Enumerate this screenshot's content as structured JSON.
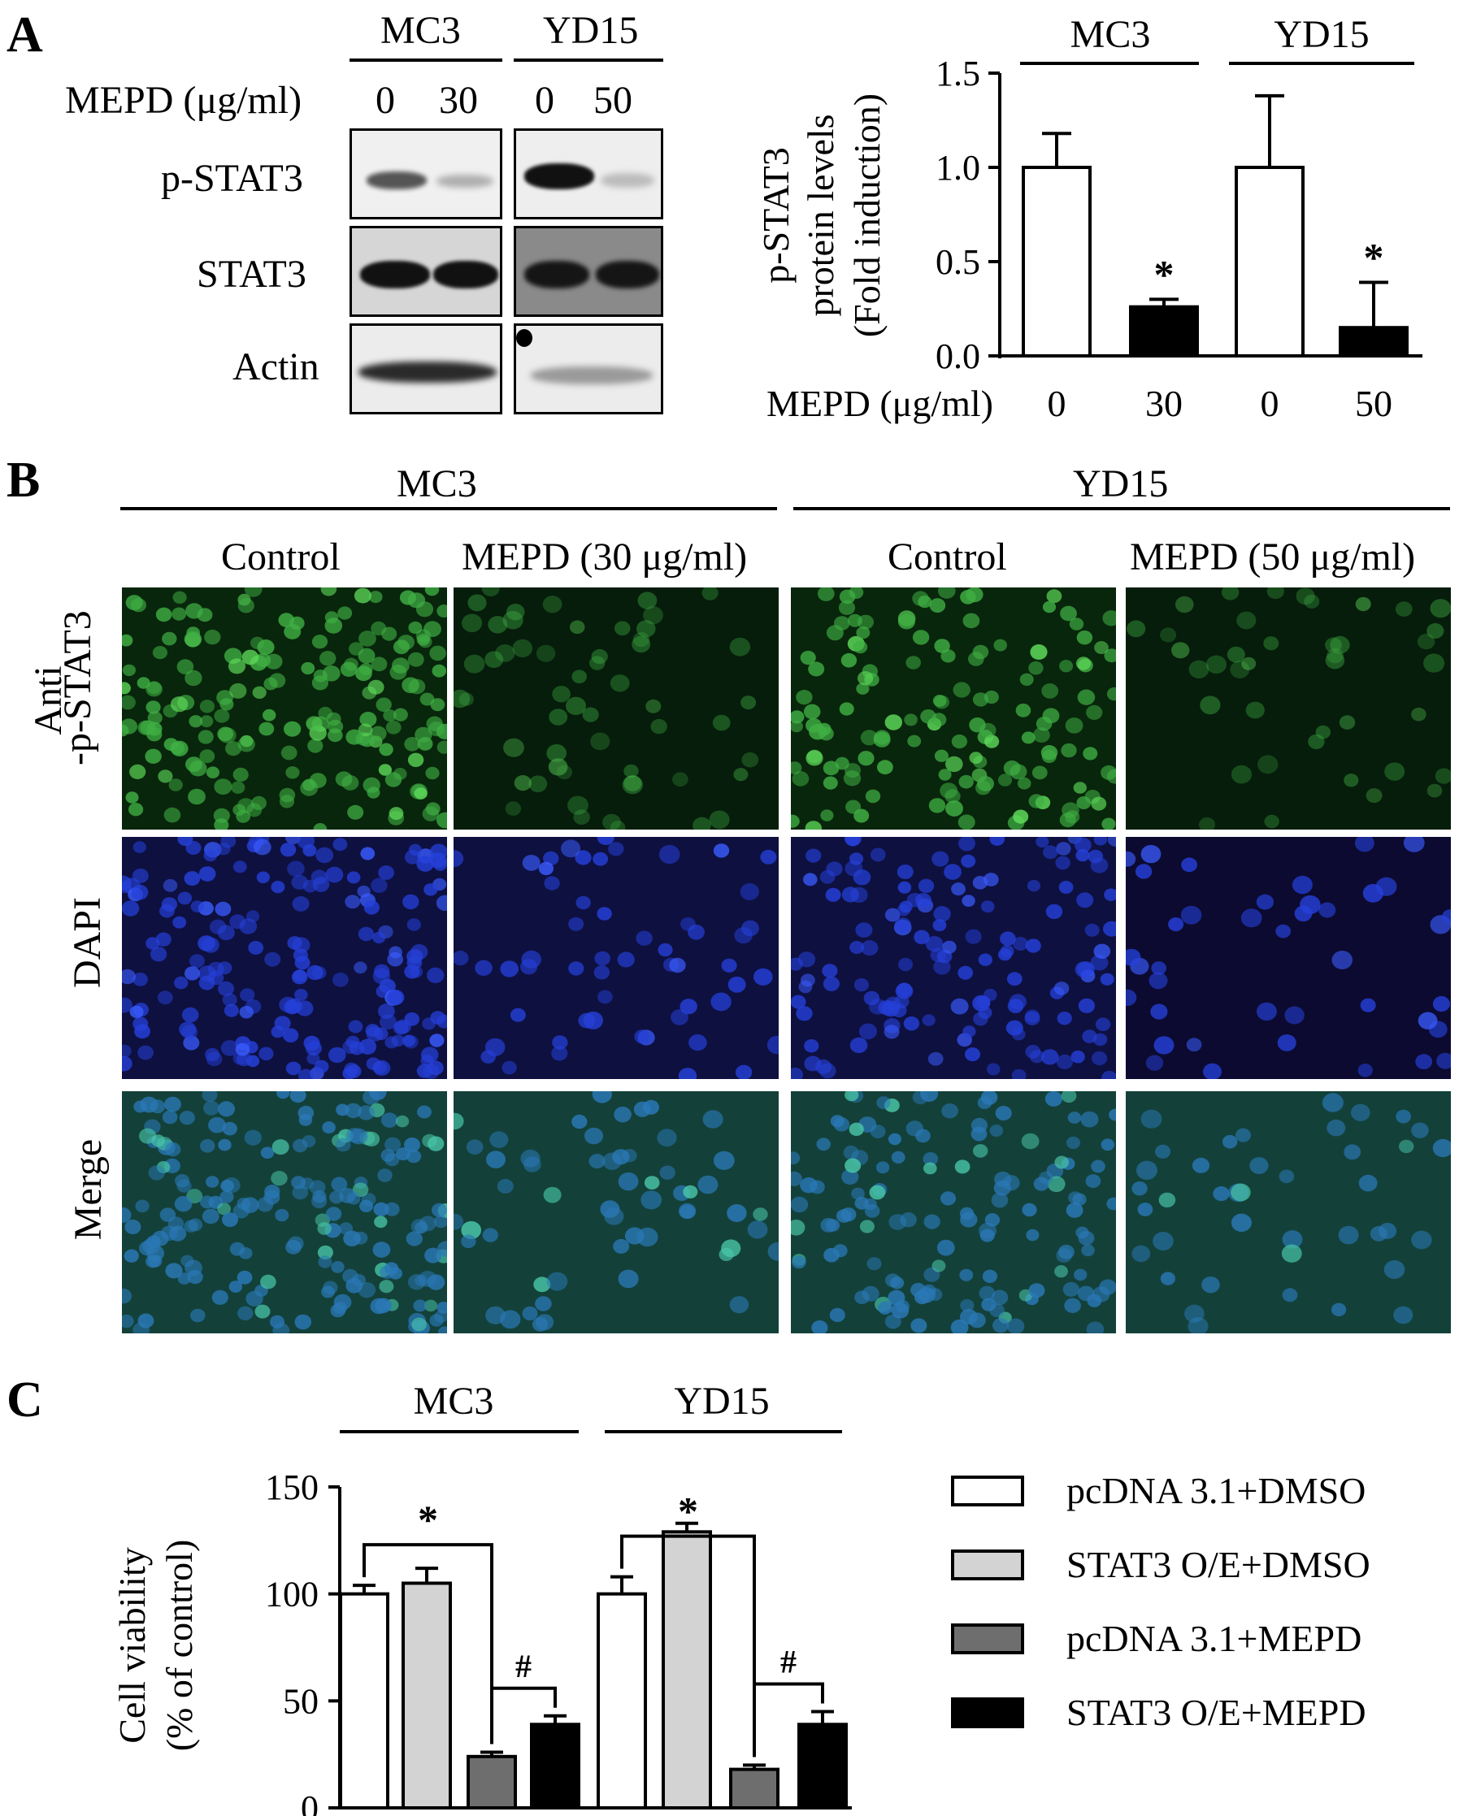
{
  "panels": {
    "a": "A",
    "b": "B",
    "c": "C"
  },
  "blot": {
    "groups": [
      "MC3",
      "YD15"
    ],
    "treatment_label": "MEPD (μg/ml)",
    "doses": [
      "0",
      "30",
      "0",
      "50"
    ],
    "rows": [
      "p-STAT3",
      "STAT3",
      "Actin"
    ]
  },
  "chart_data": [
    {
      "id": "A-bar",
      "type": "bar",
      "group_labels": [
        "MC3",
        "YD15"
      ],
      "categories": [
        "0",
        "30",
        "0",
        "50"
      ],
      "xlabel": "MEPD (μg/ml)",
      "ylabel": [
        "p-STAT3",
        "protein levels",
        "(Fold induction)"
      ],
      "ylim": [
        0,
        1.5
      ],
      "yticks": [
        "0.0",
        "0.5",
        "1.0",
        "1.5"
      ],
      "values": [
        1.0,
        0.26,
        1.0,
        0.15
      ],
      "errors": [
        0.18,
        0.04,
        0.38,
        0.24
      ],
      "fills": [
        "#ffffff",
        "#000000",
        "#ffffff",
        "#000000"
      ],
      "annotations": [
        "",
        "*",
        "",
        "*"
      ]
    },
    {
      "id": "C-bar",
      "type": "bar",
      "group_labels": [
        "MC3",
        "YD15"
      ],
      "ylabel": [
        "Cell viability",
        "(% of control)"
      ],
      "ylim": [
        0,
        150
      ],
      "yticks": [
        "0",
        "50",
        "100",
        "150"
      ],
      "series": [
        {
          "name": "pcDNA 3.1+DMSO",
          "color": "#ffffff",
          "values": [
            100,
            100
          ],
          "errors": [
            4,
            8
          ]
        },
        {
          "name": "STAT3 O/E+DMSO",
          "color": "#d3d3d3",
          "values": [
            105,
            129
          ],
          "errors": [
            7,
            4
          ]
        },
        {
          "name": "pcDNA 3.1+MEPD",
          "color": "#6e6e6e",
          "values": [
            24,
            18
          ],
          "errors": [
            2,
            2
          ]
        },
        {
          "name": "STAT3 O/E+MEPD",
          "color": "#000000",
          "values": [
            39,
            39
          ],
          "errors": [
            4,
            6
          ]
        }
      ],
      "brackets": [
        {
          "group": 0,
          "from": 0,
          "to": 2,
          "symbol": "*"
        },
        {
          "group": 0,
          "from": 2,
          "to": 3,
          "symbol": "#"
        },
        {
          "group": 1,
          "from": 0,
          "to": 2,
          "symbol": "*"
        },
        {
          "group": 1,
          "from": 2,
          "to": 3,
          "symbol": "#"
        }
      ]
    }
  ],
  "micrographs": {
    "groups": [
      "MC3",
      "YD15"
    ],
    "columns": [
      "Control",
      "MEPD (30 μg/ml)",
      "Control",
      "MEPD (50 μg/ml)"
    ],
    "rows": [
      "Anti\n-p-STAT3",
      "DAPI",
      "Merge"
    ],
    "row_lines": [
      "Anti",
      "-p-STAT3"
    ]
  }
}
